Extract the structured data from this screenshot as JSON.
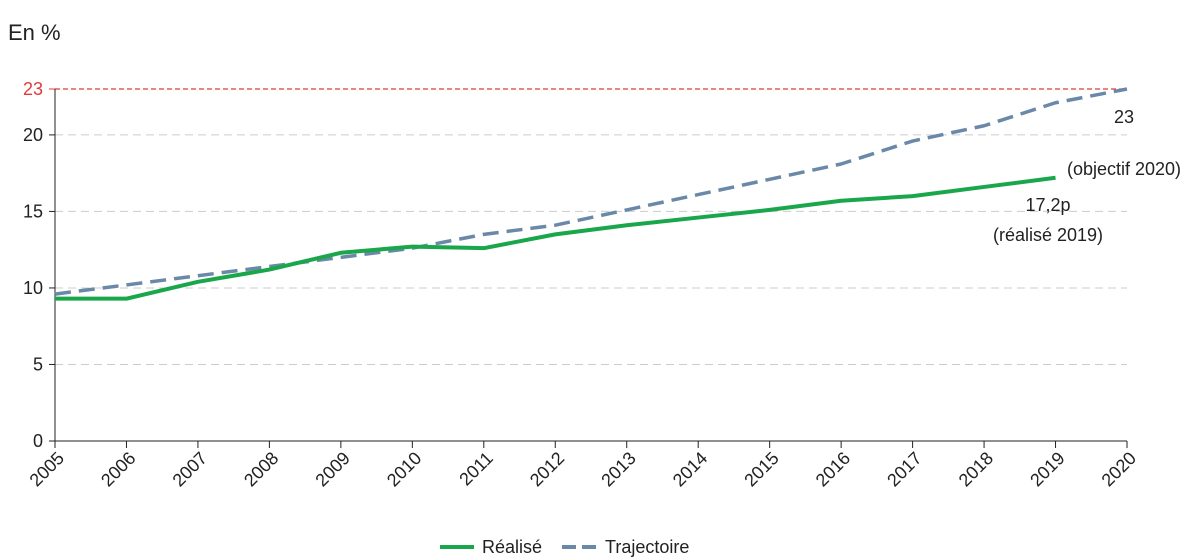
{
  "chart_data": {
    "type": "line",
    "unit_label": "En %",
    "x": [
      "2005",
      "2006",
      "2007",
      "2008",
      "2009",
      "2010",
      "2011",
      "2012",
      "2013",
      "2014",
      "2015",
      "2016",
      "2017",
      "2018",
      "2019",
      "2020"
    ],
    "ylim": [
      0,
      23
    ],
    "y_ticks": [
      0,
      5,
      10,
      15,
      20
    ],
    "grid": "horizontal dashed",
    "reference_line": {
      "value": 23,
      "label": "23",
      "color": "#e03a3a"
    },
    "series": [
      {
        "name": "Réalisé",
        "color": "#1aa64a",
        "style": "solid",
        "values": [
          9.3,
          9.3,
          10.4,
          11.2,
          12.3,
          12.7,
          12.6,
          13.5,
          14.1,
          14.6,
          15.1,
          15.7,
          16.0,
          16.6,
          17.2,
          null
        ]
      },
      {
        "name": "Trajectoire",
        "color": "#6a88a8",
        "style": "dashed",
        "values": [
          9.6,
          10.2,
          10.8,
          11.4,
          12.0,
          12.6,
          13.5,
          14.1,
          15.1,
          16.1,
          17.1,
          18.1,
          19.6,
          20.6,
          22.1,
          23.0
        ]
      }
    ],
    "annotations": [
      {
        "id": "objectif",
        "line1": "23",
        "line2": "(objectif 2020)"
      },
      {
        "id": "realise",
        "line1": "17,2p",
        "line2": "(réalisé 2019)"
      }
    ],
    "legend": {
      "placement": "bottom-center"
    }
  }
}
